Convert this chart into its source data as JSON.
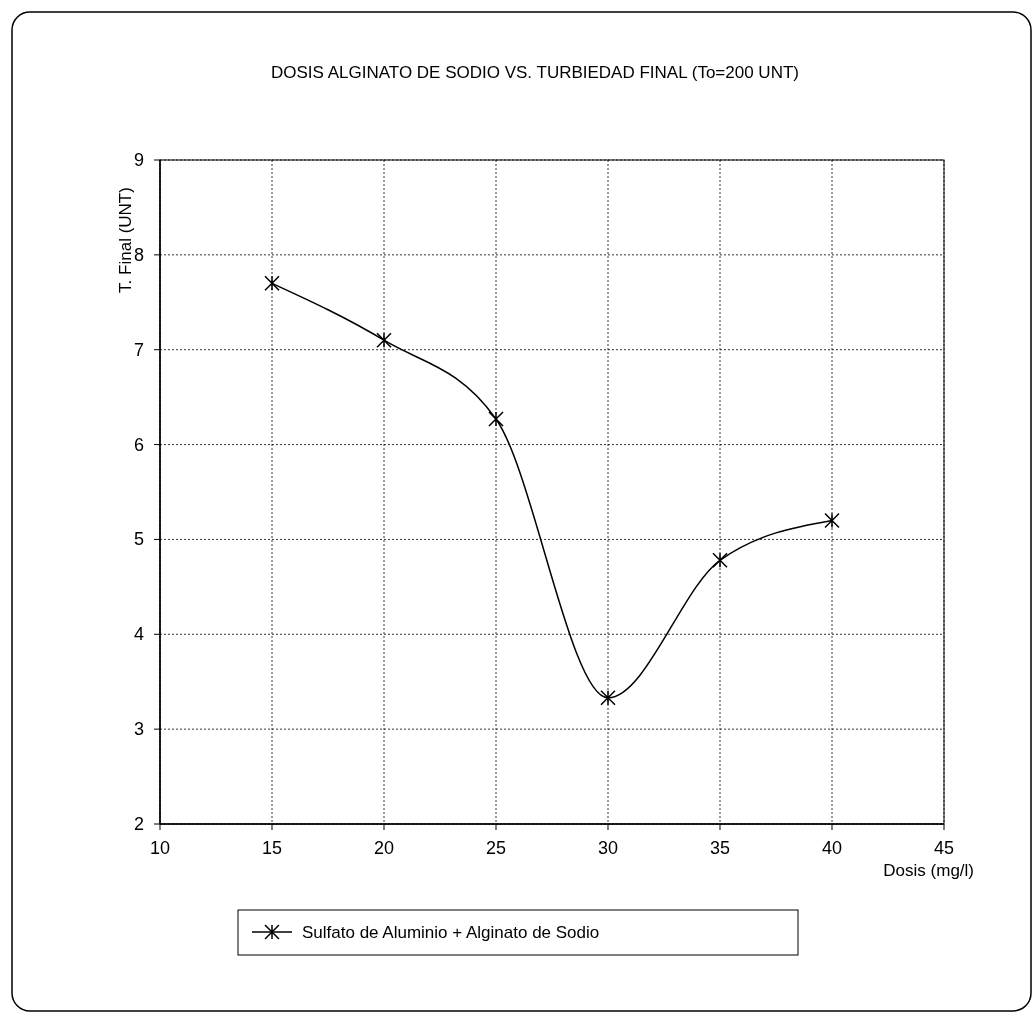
{
  "chart_data": {
    "type": "line",
    "title": "DOSIS ALGINATO DE SODIO VS. TURBIEDAD FINAL (To=200 UNT)",
    "xlabel": "Dosis (mg/l)",
    "ylabel": "T. Final (UNT)",
    "x": [
      15,
      20,
      25,
      30,
      35,
      40
    ],
    "series": [
      {
        "name": "Sulfato de Aluminio + Alginato de Sodio",
        "color": "#000000",
        "values": [
          7.7,
          7.1,
          6.27,
          3.33,
          4.78,
          5.2
        ]
      }
    ],
    "xlim": [
      10,
      45
    ],
    "xticks": [
      10,
      15,
      20,
      25,
      30,
      35,
      40,
      45
    ],
    "ylim": [
      2,
      9
    ],
    "yticks": [
      2,
      3,
      4,
      5,
      6,
      7,
      8,
      9
    ],
    "grid": true,
    "legend": "bottom",
    "marker": "cross",
    "line_style": "solid"
  }
}
